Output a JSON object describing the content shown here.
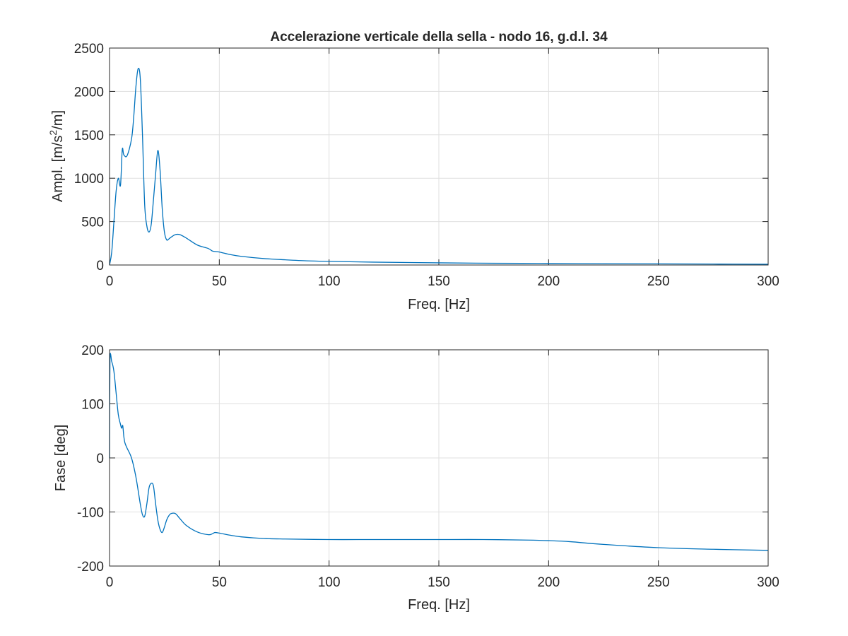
{
  "colors": {
    "series": "#0072bd",
    "axis": "#262626",
    "grid": "#dfdfdf"
  },
  "chart_data": [
    {
      "type": "line",
      "title": "Accelerazione verticale della sella - nodo 16, g.d.l. 34",
      "xlabel": "Freq. [Hz]",
      "ylabel": {
        "pre": "Ampl. [m/s",
        "sup": "2",
        "post": "/m]"
      },
      "xlim": [
        0,
        300
      ],
      "ylim": [
        0,
        2500
      ],
      "xticks": [
        0,
        50,
        100,
        150,
        200,
        250,
        300
      ],
      "yticks": [
        0,
        500,
        1000,
        1500,
        2000,
        2500
      ],
      "grid": true,
      "x": [
        0,
        1,
        2,
        3,
        4,
        5,
        5.8,
        6.5,
        8,
        10,
        11,
        12,
        13,
        14,
        15,
        16,
        17,
        18,
        19,
        20,
        21,
        22,
        23,
        24,
        25,
        26,
        27,
        28,
        30,
        32,
        35,
        40,
        45,
        47,
        50,
        55,
        60,
        70,
        80,
        90,
        100,
        120,
        150,
        175,
        200,
        225,
        250,
        275,
        300
      ],
      "y": [
        0,
        150,
        500,
        850,
        1000,
        920,
        1330,
        1270,
        1260,
        1450,
        1700,
        2050,
        2260,
        2150,
        1500,
        700,
        450,
        380,
        470,
        750,
        1050,
        1320,
        1100,
        650,
        380,
        290,
        300,
        320,
        350,
        350,
        310,
        230,
        190,
        160,
        150,
        120,
        100,
        75,
        60,
        48,
        42,
        33,
        25,
        20,
        18,
        15,
        13,
        11,
        9
      ]
    },
    {
      "type": "line",
      "title": "",
      "xlabel": "Freq. [Hz]",
      "ylabel": "Fase [deg]",
      "xlim": [
        0,
        300
      ],
      "ylim": [
        -200,
        200
      ],
      "xticks": [
        0,
        50,
        100,
        150,
        200,
        250,
        300
      ],
      "yticks": [
        -200,
        -100,
        0,
        100,
        200
      ],
      "grid": true,
      "x": [
        0,
        0.2,
        1,
        2,
        3,
        4,
        5,
        5.5,
        6,
        6.5,
        7,
        8,
        10,
        12,
        14,
        15,
        16,
        17,
        18,
        19,
        20,
        21,
        22,
        23,
        24,
        25,
        26,
        27,
        28,
        30,
        32,
        35,
        40,
        45,
        47,
        48,
        50,
        55,
        60,
        70,
        80,
        100,
        120,
        150,
        170,
        190,
        200,
        210,
        225,
        250,
        275,
        300
      ],
      "y": [
        0,
        180,
        178,
        160,
        120,
        80,
        62,
        55,
        60,
        40,
        28,
        18,
        0,
        -35,
        -85,
        -105,
        -108,
        -85,
        -55,
        -47,
        -52,
        -85,
        -115,
        -132,
        -138,
        -128,
        -115,
        -107,
        -103,
        -103,
        -112,
        -125,
        -137,
        -142,
        -140,
        -138,
        -139,
        -143,
        -146,
        -149,
        -150,
        -151,
        -151,
        -151,
        -151,
        -152,
        -153,
        -155,
        -160,
        -166,
        -169,
        -171
      ]
    }
  ]
}
